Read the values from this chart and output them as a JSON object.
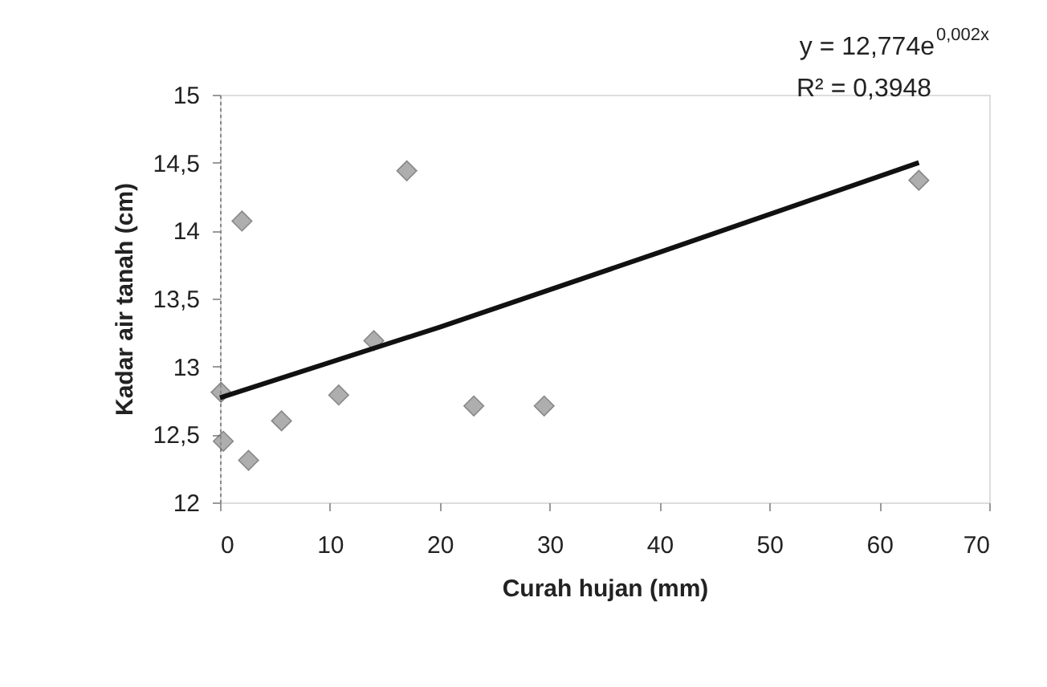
{
  "chart_data": {
    "type": "scatter",
    "xlabel": "Curah hujan (mm)",
    "ylabel": "Kadar air tanah (cm)",
    "annotations": [
      "y = 12,774e$^{0,002x}$",
      "R² = 0,3948"
    ],
    "xlim": [
      0,
      70
    ],
    "xticks": [
      0,
      10,
      20,
      30,
      40,
      50,
      60,
      70
    ],
    "ylim": [
      12,
      15
    ],
    "yticks": [
      12,
      {
        "value": 12.5,
        "label": "12,5"
      },
      13,
      {
        "value": 13.5,
        "label": "13,5"
      },
      14,
      {
        "value": 14.5,
        "label": "14,5"
      },
      15
    ],
    "grid": false,
    "series": [
      {
        "marker": "diamond",
        "color": "#8c8c8c",
        "x": [
          0.1,
          0.3,
          2.0,
          2.6,
          5.6,
          10.8,
          14.0,
          17.0,
          23.1,
          29.5,
          63.6
        ],
        "values": [
          12.81,
          12.45,
          14.07,
          12.31,
          12.6,
          12.79,
          13.19,
          14.44,
          12.71,
          12.71,
          14.37
        ]
      },
      {
        "type": "line",
        "color": "#111111",
        "marker": "none",
        "line_style": "solid",
        "x": [
          0,
          20,
          40,
          63.6
        ],
        "values": [
          12.77,
          13.29,
          13.84,
          14.5
        ]
      }
    ]
  }
}
